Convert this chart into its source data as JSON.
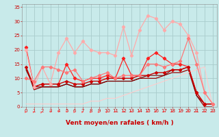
{
  "background_color": "#c8eaea",
  "grid_color": "#a8cccc",
  "xlim": [
    -0.5,
    23.5
  ],
  "ylim": [
    0,
    36
  ],
  "xticks": [
    0,
    1,
    2,
    3,
    4,
    5,
    6,
    7,
    8,
    9,
    10,
    11,
    12,
    13,
    14,
    15,
    16,
    17,
    18,
    19,
    20,
    21,
    22,
    23
  ],
  "yticks": [
    0,
    5,
    10,
    15,
    20,
    25,
    30,
    35
  ],
  "xlabel": "Vent moyen/en rafales ( km/h )",
  "series": [
    {
      "x": [
        0,
        1,
        2,
        3,
        4,
        5,
        6,
        7,
        8,
        9,
        10,
        11,
        12,
        13,
        14,
        15,
        16,
        17,
        18,
        19,
        20,
        21,
        22
      ],
      "y": [
        21,
        7,
        8,
        8,
        8,
        15,
        10,
        9,
        10,
        10,
        11,
        10,
        17,
        11,
        11,
        17,
        19,
        17,
        15,
        15,
        14,
        5,
        1
      ],
      "color": "#ff2020",
      "lw": 0.9,
      "marker": "D",
      "ms": 2.2
    },
    {
      "x": [
        0,
        1,
        2,
        3,
        4,
        5,
        6,
        7,
        8,
        9,
        10,
        11,
        12,
        13,
        14,
        15,
        16,
        17,
        18,
        19,
        20,
        21,
        22,
        23
      ],
      "y": [
        14,
        7,
        8,
        8,
        8,
        9,
        8,
        8,
        9,
        9,
        10,
        10,
        10,
        10,
        11,
        11,
        12,
        12,
        13,
        13,
        14,
        5,
        1,
        1
      ],
      "color": "#cc0000",
      "lw": 1.0,
      "marker": "D",
      "ms": 2.0
    },
    {
      "x": [
        0,
        1,
        2,
        3,
        4,
        5,
        6,
        7,
        8,
        9,
        10,
        11,
        12,
        13,
        14,
        15,
        16,
        17,
        18,
        19,
        20,
        21,
        22,
        23
      ],
      "y": [
        14,
        6,
        7,
        7,
        7,
        8,
        7,
        7,
        8,
        8,
        9,
        9,
        9,
        9,
        10,
        10,
        10,
        11,
        12,
        12,
        13,
        4,
        0,
        0
      ],
      "color": "#990000",
      "lw": 0.9,
      "marker": null,
      "ms": 0
    },
    {
      "x": [
        0,
        1,
        2,
        3,
        4,
        5,
        6,
        7,
        8,
        9,
        10,
        11,
        12,
        13,
        14,
        15,
        16,
        17,
        18,
        19,
        20,
        21,
        22,
        23
      ],
      "y": [
        13,
        7,
        7,
        7,
        7,
        8,
        7,
        7,
        8,
        8,
        9,
        9,
        9,
        9,
        10,
        11,
        11,
        11,
        13,
        13,
        14,
        4,
        1,
        1
      ],
      "color": "#770000",
      "lw": 0.8,
      "marker": null,
      "ms": 0
    },
    {
      "x": [
        0,
        1,
        2,
        3,
        4,
        5,
        6,
        7,
        8,
        9,
        10,
        11,
        12,
        13,
        14,
        15,
        16,
        17,
        18,
        19,
        20,
        21,
        22,
        23
      ],
      "y": [
        20,
        7,
        14,
        8,
        19,
        24,
        19,
        23,
        20,
        19,
        19,
        18,
        28,
        18,
        27,
        32,
        31,
        27,
        30,
        29,
        25,
        19,
        5,
        1
      ],
      "color": "#ffaaaa",
      "lw": 0.9,
      "marker": "D",
      "ms": 2.2
    },
    {
      "x": [
        0,
        1,
        2,
        3,
        4,
        5,
        6,
        7,
        8,
        9,
        10,
        11,
        12,
        13,
        14,
        15,
        16,
        17,
        18,
        19,
        20,
        21,
        22,
        23
      ],
      "y": [
        10,
        9,
        14,
        14,
        13,
        12,
        13,
        9,
        10,
        11,
        12,
        10,
        11,
        11,
        11,
        15,
        15,
        14,
        15,
        16,
        24,
        15,
        5,
        1
      ],
      "color": "#ff7777",
      "lw": 0.9,
      "marker": "D",
      "ms": 2.2
    },
    {
      "x": [
        0,
        1,
        2,
        3,
        4,
        5,
        6,
        7,
        8,
        9,
        10,
        11,
        12,
        13,
        14,
        15,
        16,
        17,
        18,
        19,
        20,
        21,
        22,
        23
      ],
      "y": [
        1,
        1,
        1,
        1,
        1,
        1,
        1,
        1,
        2,
        2,
        3,
        3,
        4,
        5,
        6,
        7,
        8,
        9,
        10,
        11,
        12,
        13,
        14,
        0
      ],
      "color": "#ffcccc",
      "lw": 0.8,
      "marker": null,
      "ms": 0
    }
  ],
  "arrow_color": "#ff5555",
  "axis_label_color": "#cc0000",
  "tick_color": "#cc0000",
  "axis_fontsize": 6.5,
  "tick_fontsize": 5.0
}
